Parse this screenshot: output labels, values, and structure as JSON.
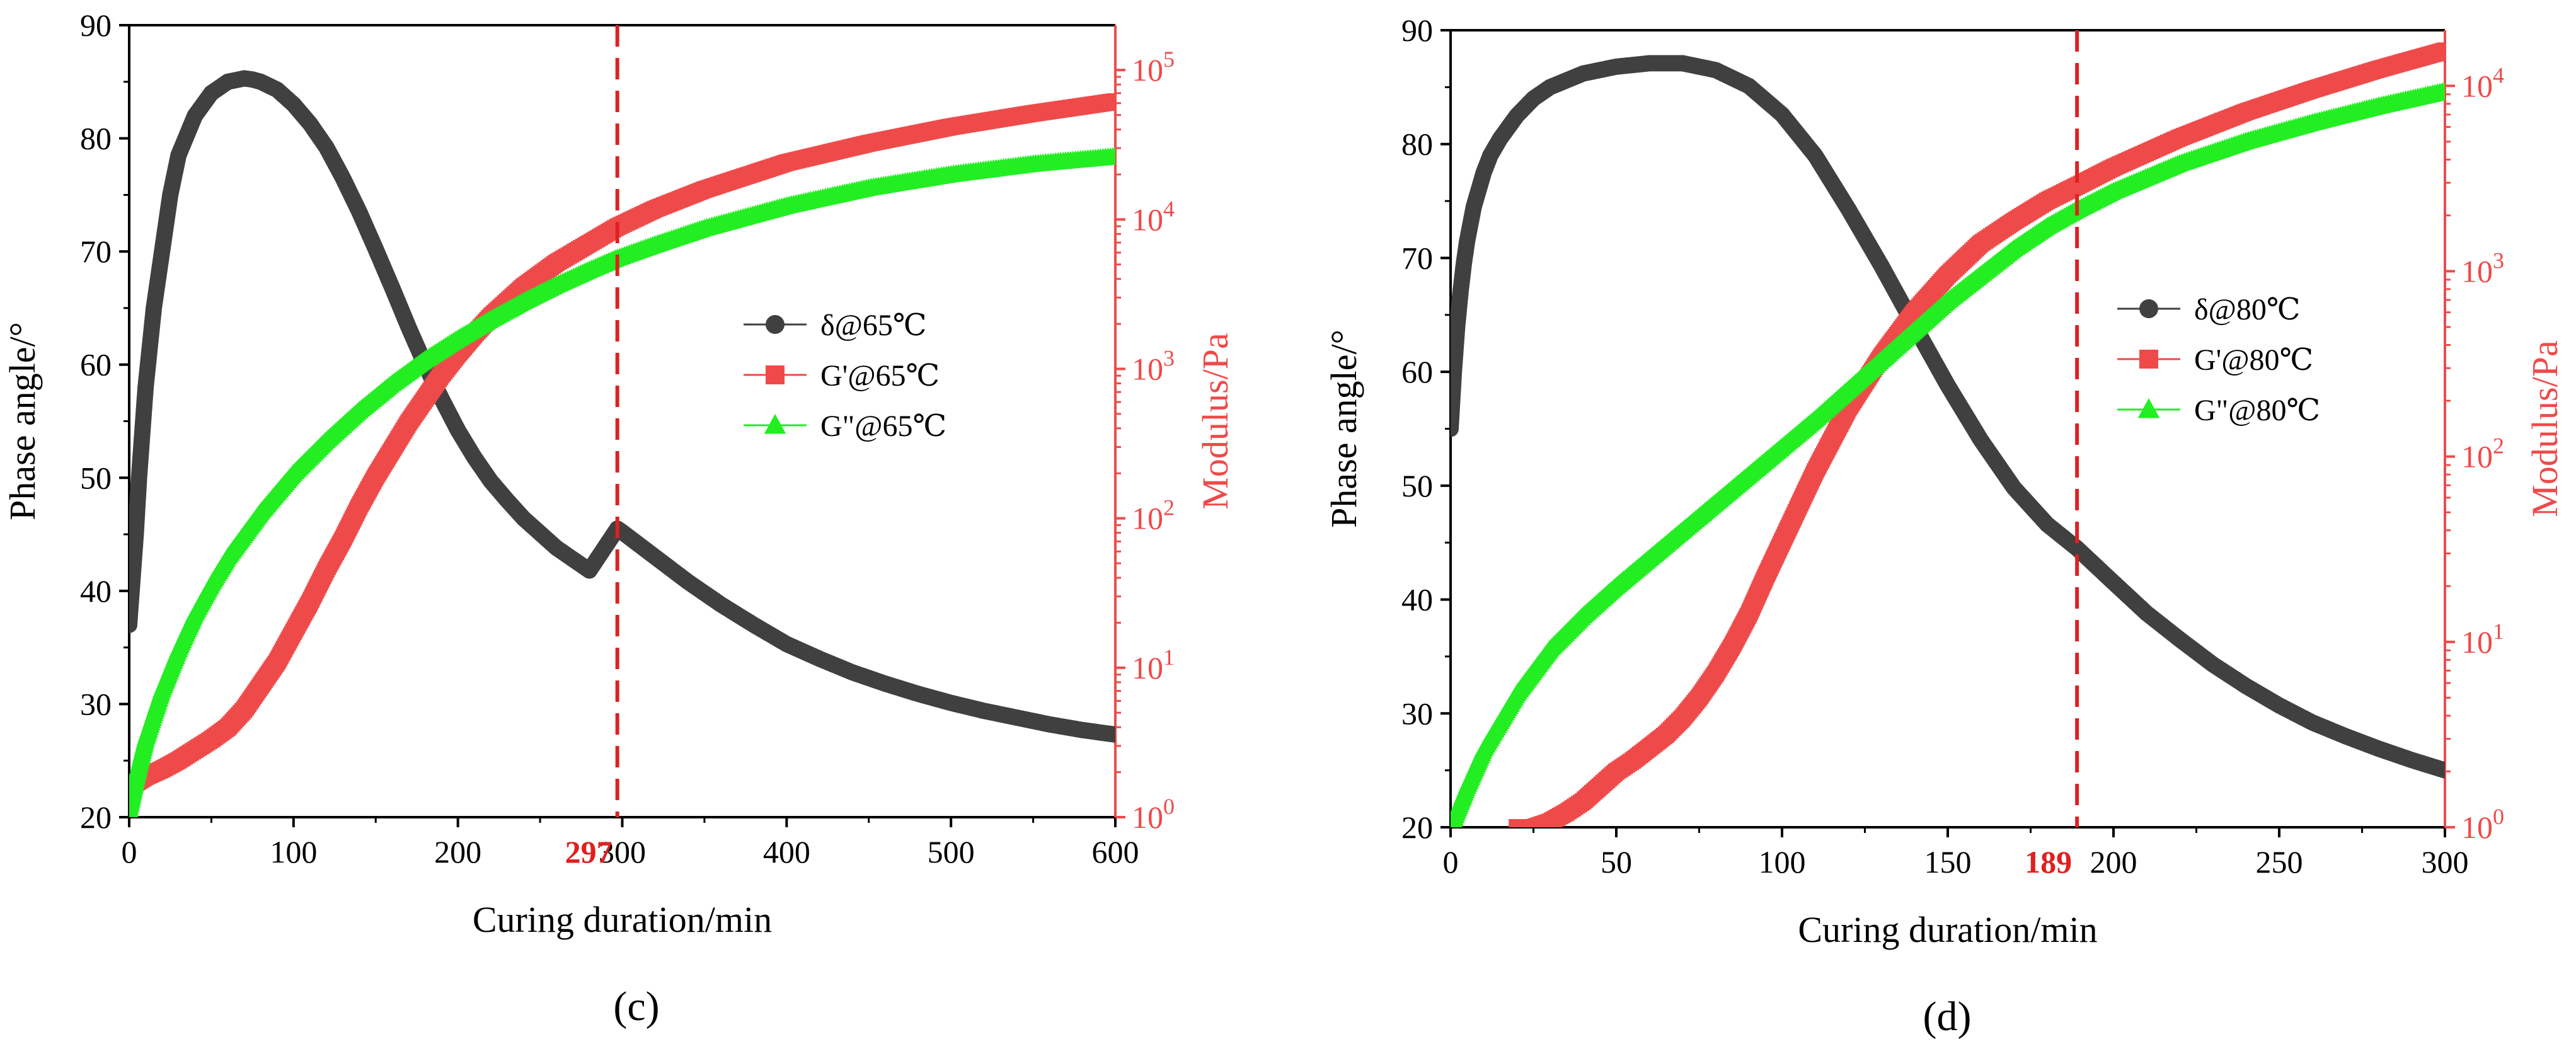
{
  "colors": {
    "delta": "#404040",
    "gprime": "#ef4a4a",
    "gdouble": "#22ee22",
    "right_axis": "#ef4a4a",
    "marker": "#e02020"
  },
  "chart_data": [
    {
      "type": "line",
      "panel_label": "(c)",
      "xlabel": "Curing duration/min",
      "ylabel_left": "Phase angle/°",
      "ylabel_right": "Modulus/Pa",
      "xlim": [
        0,
        600
      ],
      "ylim_left": [
        20,
        90
      ],
      "ylim_right_log10": [
        0,
        5.3
      ],
      "x_ticks": [
        "0",
        "100",
        "200",
        "300",
        "400",
        "500",
        "600"
      ],
      "y_left_ticks": [
        "20",
        "30",
        "40",
        "50",
        "60",
        "70",
        "80",
        "90"
      ],
      "y_right_ticks": [
        {
          "base": "10",
          "exp": "0"
        },
        {
          "base": "10",
          "exp": "1"
        },
        {
          "base": "10",
          "exp": "2"
        },
        {
          "base": "10",
          "exp": "3"
        },
        {
          "base": "10",
          "exp": "4"
        },
        {
          "base": "10",
          "exp": "5"
        }
      ],
      "vline": {
        "x": 297,
        "label": "297"
      },
      "legend": [
        "δ@65℃",
        "G'@65℃",
        "G\"@65℃"
      ],
      "series": [
        {
          "name": "δ@65℃",
          "axis": "left",
          "marker": "circle",
          "x": [
            0,
            2,
            4,
            6,
            8,
            10,
            15,
            20,
            25,
            30,
            40,
            50,
            60,
            70,
            75,
            80,
            90,
            100,
            110,
            120,
            130,
            140,
            150,
            160,
            170,
            180,
            190,
            200,
            210,
            220,
            230,
            240,
            260,
            280,
            297,
            300,
            320,
            340,
            360,
            380,
            400,
            420,
            440,
            460,
            480,
            500,
            520,
            540,
            560,
            580,
            600
          ],
          "y": [
            37,
            41,
            45,
            50,
            54,
            58,
            65,
            70,
            75,
            78.5,
            82,
            84,
            85,
            85.3,
            85.2,
            85,
            84.3,
            83,
            81.3,
            79.2,
            76.5,
            73.5,
            70.2,
            66.8,
            63.3,
            60,
            57,
            54.2,
            51.8,
            49.7,
            48,
            46.4,
            43.8,
            41.8,
            45.5,
            45.2,
            43,
            40.8,
            38.8,
            37,
            35.3,
            34,
            32.8,
            31.8,
            30.9,
            30.1,
            29.4,
            28.8,
            28.2,
            27.7,
            27.3
          ]
        },
        {
          "name": "G'@65℃",
          "axis": "right",
          "marker": "square",
          "x": [
            0,
            10,
            20,
            30,
            40,
            50,
            60,
            70,
            80,
            90,
            100,
            110,
            120,
            130,
            140,
            150,
            160,
            170,
            180,
            190,
            200,
            210,
            220,
            240,
            260,
            280,
            297,
            320,
            350,
            400,
            450,
            500,
            550,
            600
          ],
          "log10y": [
            0.2,
            0.27,
            0.32,
            0.38,
            0.45,
            0.52,
            0.6,
            0.72,
            0.88,
            1.04,
            1.24,
            1.44,
            1.66,
            1.86,
            2.08,
            2.28,
            2.46,
            2.64,
            2.8,
            2.96,
            3.1,
            3.23,
            3.35,
            3.55,
            3.71,
            3.84,
            3.95,
            4.07,
            4.2,
            4.38,
            4.51,
            4.62,
            4.71,
            4.79
          ]
        },
        {
          "name": "G\"@65℃",
          "axis": "right",
          "marker": "triangle",
          "x": [
            0,
            5,
            10,
            20,
            30,
            40,
            50,
            60,
            80,
            100,
            120,
            140,
            160,
            180,
            200,
            220,
            240,
            260,
            280,
            297,
            320,
            350,
            400,
            450,
            500,
            550,
            600
          ],
          "log10y": [
            0.05,
            0.3,
            0.52,
            0.85,
            1.12,
            1.36,
            1.56,
            1.74,
            2.04,
            2.3,
            2.52,
            2.72,
            2.9,
            3.06,
            3.2,
            3.33,
            3.45,
            3.56,
            3.66,
            3.74,
            3.83,
            3.94,
            4.09,
            4.21,
            4.3,
            4.37,
            4.42
          ]
        }
      ]
    },
    {
      "type": "line",
      "panel_label": "(d)",
      "xlabel": "Curing duration/min",
      "ylabel_left": "Phase angle/°",
      "ylabel_right": "Modulus/Pa",
      "xlim": [
        0,
        300
      ],
      "ylim_left": [
        20,
        90
      ],
      "ylim_right_log10": [
        0,
        4.3
      ],
      "x_ticks": [
        "0",
        "50",
        "100",
        "150",
        "200",
        "250",
        "300"
      ],
      "y_left_ticks": [
        "20",
        "30",
        "40",
        "50",
        "60",
        "70",
        "80",
        "90"
      ],
      "y_right_ticks": [
        {
          "base": "10",
          "exp": "0"
        },
        {
          "base": "10",
          "exp": "1"
        },
        {
          "base": "10",
          "exp": "2"
        },
        {
          "base": "10",
          "exp": "3"
        },
        {
          "base": "10",
          "exp": "4"
        }
      ],
      "vline": {
        "x": 189,
        "label": "189"
      },
      "legend": [
        "δ@80℃",
        "G'@80℃",
        "G\"@80℃"
      ],
      "series": [
        {
          "name": "δ@80℃",
          "axis": "left",
          "marker": "circle",
          "x": [
            0,
            1,
            2,
            3,
            4,
            5,
            7,
            10,
            12,
            15,
            20,
            25,
            30,
            40,
            50,
            60,
            70,
            80,
            90,
            100,
            110,
            120,
            130,
            140,
            150,
            160,
            170,
            180,
            189,
            200,
            210,
            220,
            230,
            240,
            250,
            260,
            270,
            280,
            290,
            300
          ],
          "y": [
            55,
            60,
            64,
            67,
            69.5,
            71.5,
            74.5,
            77.5,
            79,
            80.5,
            82.5,
            84,
            85,
            86.2,
            86.8,
            87.1,
            87.1,
            86.5,
            85.1,
            82.6,
            79,
            74.3,
            69.3,
            64,
            58.8,
            54,
            49.8,
            46.6,
            44.5,
            41.5,
            38.8,
            36.5,
            34.3,
            32.4,
            30.7,
            29.2,
            28,
            26.9,
            25.9,
            25
          ]
        },
        {
          "name": "G'@80℃",
          "axis": "right",
          "marker": "square",
          "x": [
            20,
            25,
            30,
            35,
            40,
            45,
            50,
            55,
            60,
            65,
            70,
            75,
            80,
            85,
            90,
            95,
            100,
            110,
            120,
            130,
            140,
            150,
            160,
            170,
            180,
            189,
            200,
            220,
            240,
            260,
            280,
            300
          ],
          "log10y": [
            0,
            0,
            0.03,
            0.08,
            0.14,
            0.22,
            0.3,
            0.36,
            0.43,
            0.5,
            0.59,
            0.7,
            0.83,
            0.98,
            1.15,
            1.35,
            1.54,
            1.92,
            2.26,
            2.54,
            2.78,
            2.98,
            3.15,
            3.27,
            3.38,
            3.46,
            3.56,
            3.72,
            3.86,
            3.98,
            4.09,
            4.19
          ]
        },
        {
          "name": "G\"@80℃",
          "axis": "right",
          "marker": "triangle",
          "x": [
            0,
            5,
            10,
            20,
            30,
            40,
            50,
            60,
            70,
            80,
            90,
            100,
            110,
            120,
            130,
            140,
            150,
            160,
            170,
            180,
            189,
            200,
            220,
            240,
            260,
            280,
            300
          ],
          "log10y": [
            0,
            0.22,
            0.42,
            0.72,
            0.96,
            1.14,
            1.3,
            1.45,
            1.6,
            1.75,
            1.9,
            2.05,
            2.2,
            2.36,
            2.52,
            2.68,
            2.84,
            2.98,
            3.12,
            3.24,
            3.33,
            3.43,
            3.58,
            3.7,
            3.8,
            3.89,
            3.97
          ]
        }
      ]
    }
  ]
}
